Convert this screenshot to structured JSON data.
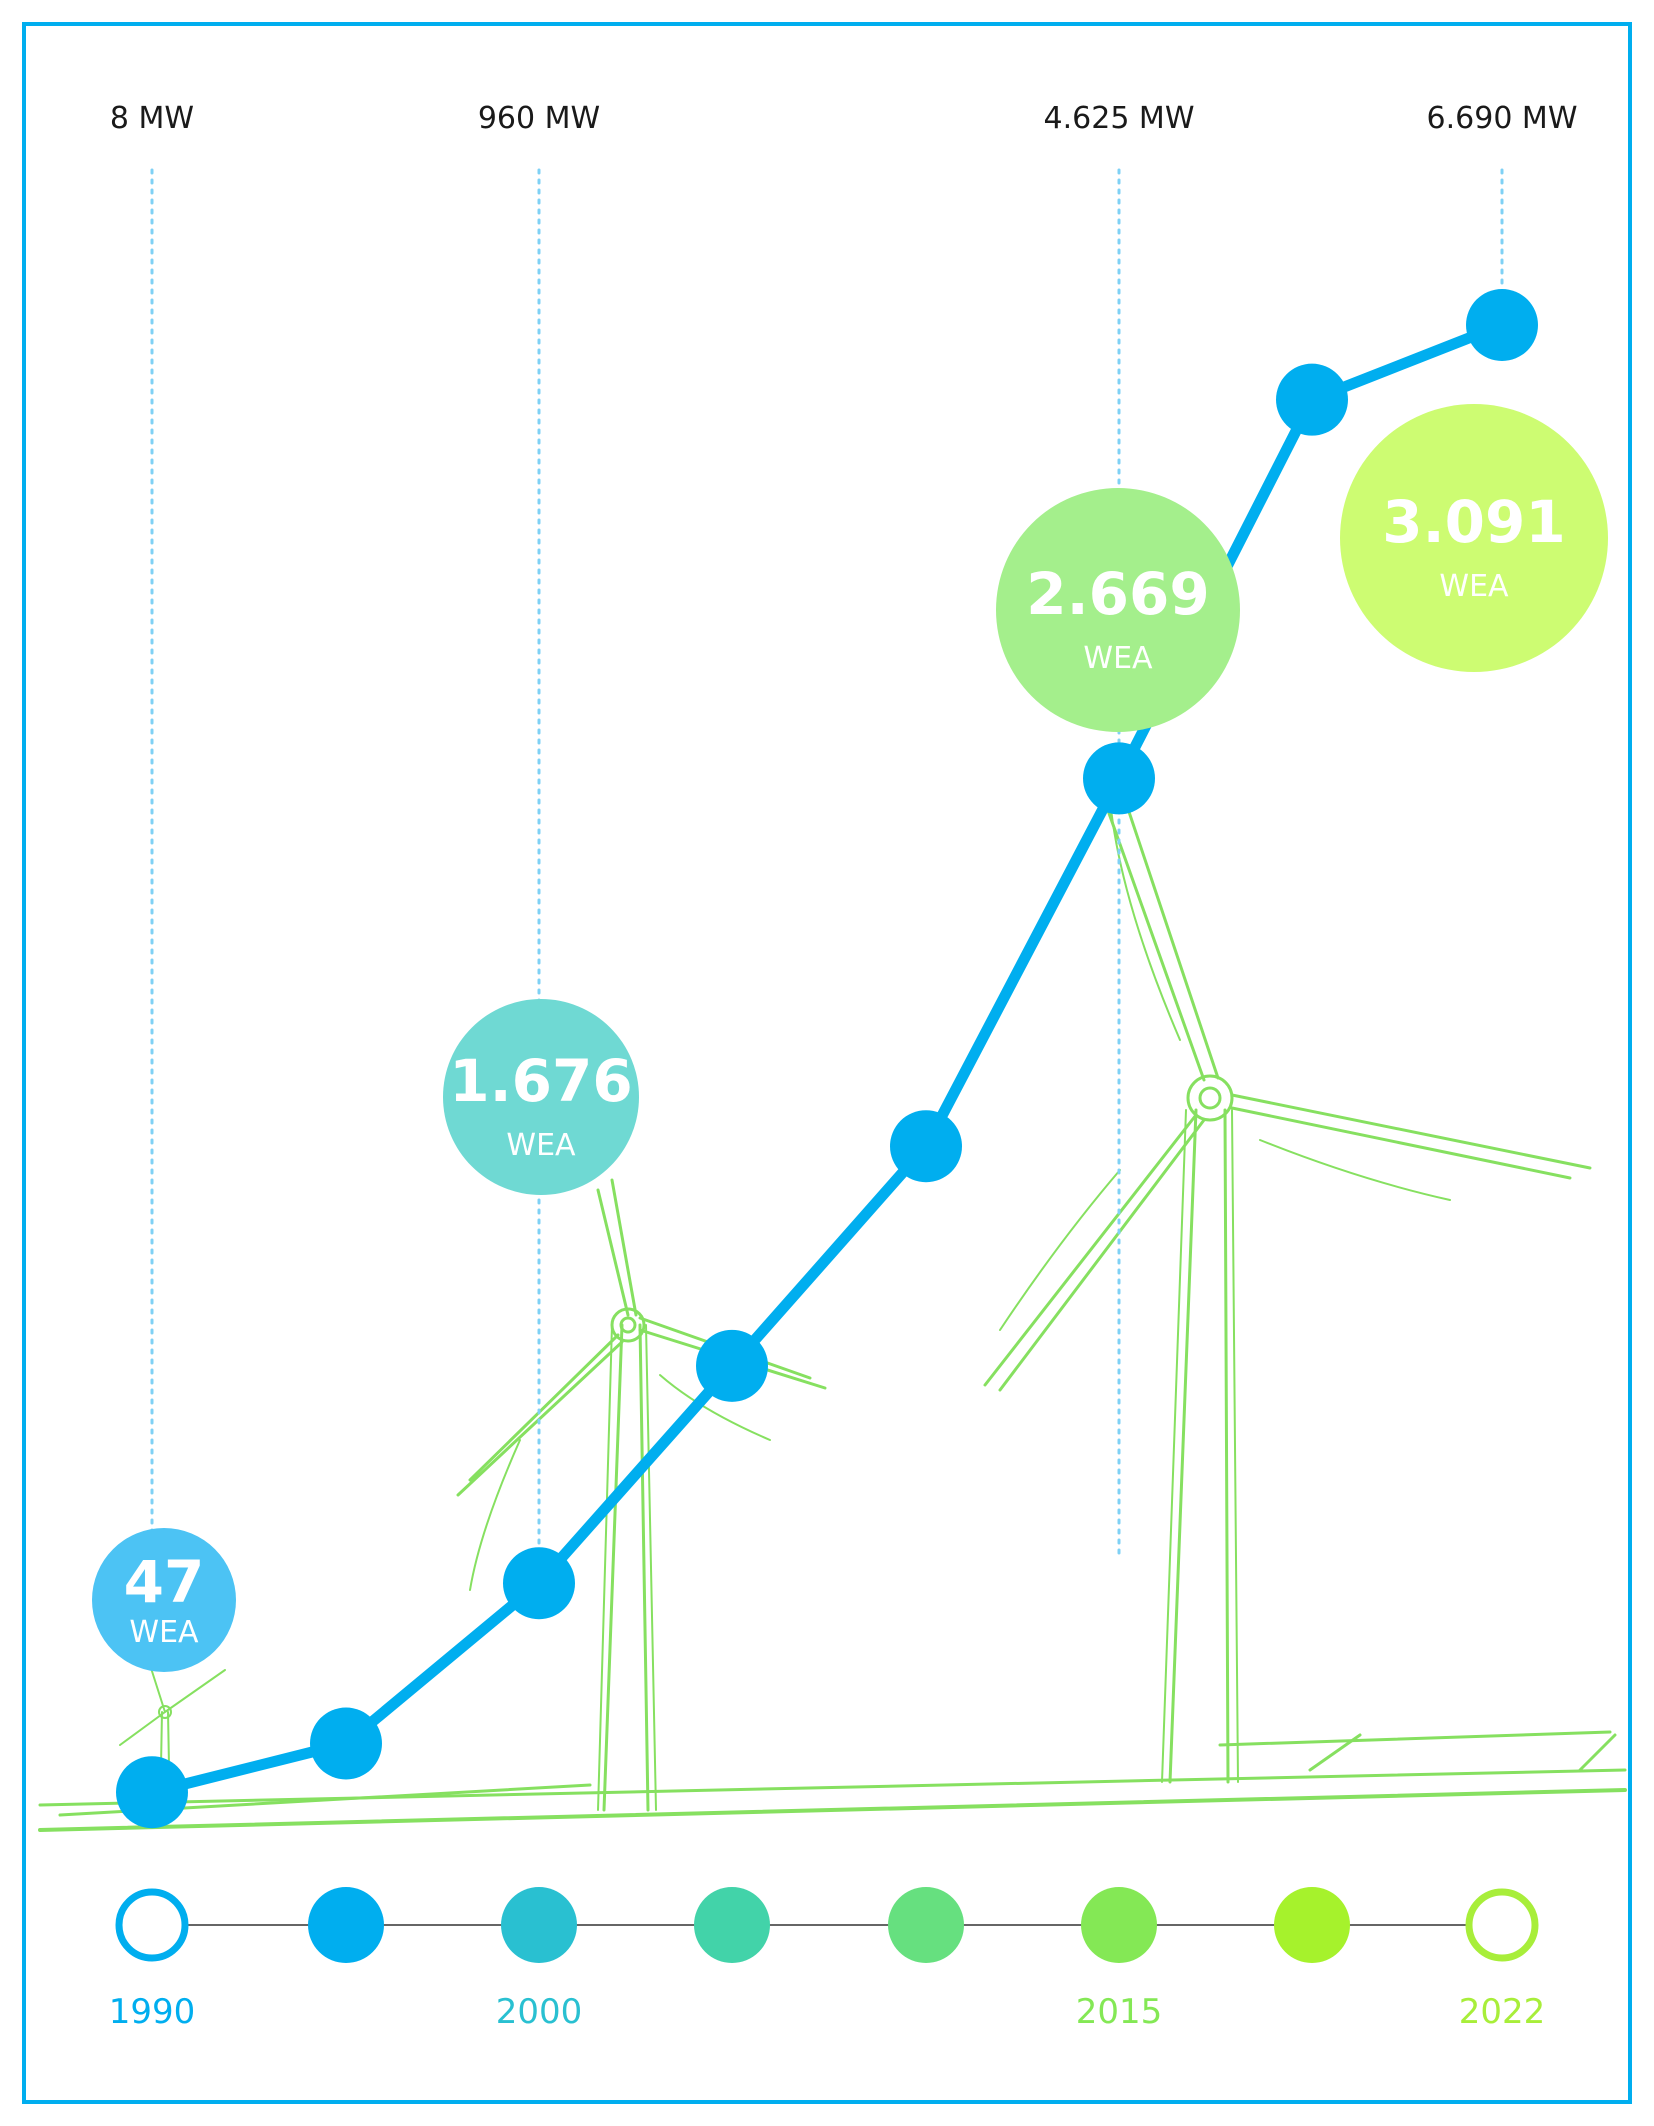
{
  "chart_data": {
    "type": "line",
    "x": [
      1990,
      1995,
      2000,
      2005,
      2010,
      2015,
      2019,
      2022
    ],
    "series": [
      {
        "values": [
          8,
          230,
          960,
          1950,
          2950,
          4625,
          6350,
          6690
        ]
      }
    ],
    "ylim": [
      0,
      7000
    ],
    "grid": false,
    "line_color": "#00aeef",
    "capacity_labels": [
      {
        "year": 1990,
        "text": "8 MW"
      },
      {
        "year": 2000,
        "text": "960 MW"
      },
      {
        "year": 2015,
        "text": "4.625 MW"
      },
      {
        "year": 2022,
        "text": "6.690 MW"
      }
    ],
    "turbine_bubbles": [
      {
        "year": 1990,
        "count": "47",
        "unit": "WEA",
        "color": "#4cc3f4"
      },
      {
        "year": 2000,
        "count": "1.676",
        "unit": "WEA",
        "color": "#6fd9d3"
      },
      {
        "year": 2015,
        "count": "2.669",
        "unit": "WEA",
        "color": "#a4ef8c"
      },
      {
        "year": 2022,
        "count": "3.091",
        "unit": "WEA",
        "color": "#cdfc72"
      }
    ],
    "timeline": [
      {
        "year": 1990,
        "label": "1990",
        "color": "#00aeef",
        "hollow": true
      },
      {
        "year": 1995,
        "label": "",
        "color": "#00aeef",
        "hollow": false
      },
      {
        "year": 2000,
        "label": "2000",
        "color": "#29c0d1",
        "hollow": false
      },
      {
        "year": 2005,
        "label": "",
        "color": "#42d3a9",
        "hollow": false
      },
      {
        "year": 2010,
        "label": "",
        "color": "#66e07f",
        "hollow": false
      },
      {
        "year": 2015,
        "label": "2015",
        "color": "#84e855",
        "hollow": false
      },
      {
        "year": 2019,
        "label": "",
        "color": "#a6f22c",
        "hollow": false
      },
      {
        "year": 2022,
        "label": "2022",
        "color": "#a8ee3a",
        "hollow": true
      }
    ]
  },
  "colors": {
    "frame": "#00aeef",
    "sketch": "#86e060",
    "dotted": "#7fd1f5",
    "axis": "#666666"
  }
}
